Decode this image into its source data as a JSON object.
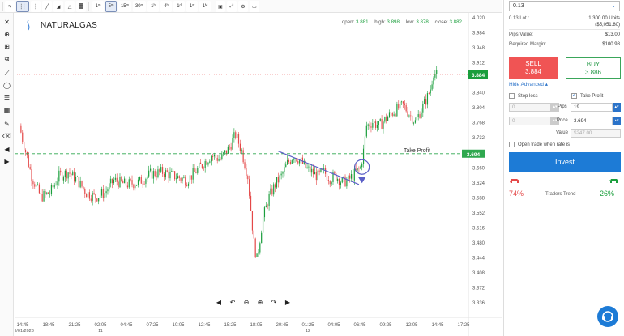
{
  "toolbar": {
    "buttons": [
      {
        "name": "cursor-tool-button",
        "label": "↖",
        "active": false
      },
      {
        "name": "candles-chart-button",
        "label": "┆┆",
        "active": true
      },
      {
        "name": "bars-chart-button",
        "label": "┇",
        "active": false
      },
      {
        "name": "line-chart-button",
        "label": "╱",
        "active": false
      },
      {
        "name": "area-chart-button",
        "label": "◢",
        "active": false
      },
      {
        "name": "mountain-chart-button",
        "label": "△",
        "active": false
      },
      {
        "name": "heikin-chart-button",
        "label": "▓",
        "active": false
      },
      {
        "name": "timeframe-1m-button",
        "label": "1ᵐ",
        "active": false
      },
      {
        "name": "timeframe-5m-button",
        "label": "5ᵐ",
        "active": true
      },
      {
        "name": "timeframe-15m-button",
        "label": "15ᵐ",
        "active": false
      },
      {
        "name": "timeframe-30m-button",
        "label": "30ᵐ",
        "active": false
      },
      {
        "name": "timeframe-1h-button",
        "label": "1ʰ",
        "active": false
      },
      {
        "name": "timeframe-4h-button",
        "label": "4ʰ",
        "active": false
      },
      {
        "name": "timeframe-1d-button",
        "label": "1ᵈ",
        "active": false
      },
      {
        "name": "timeframe-1w-button",
        "label": "1ʷ",
        "active": false
      },
      {
        "name": "timeframe-1mo-button",
        "label": "1ᴹ",
        "active": false
      }
    ]
  },
  "chart": {
    "symbol": "NATURALGAS",
    "ohlc": {
      "open_label": "open:",
      "open": "3.881",
      "high_label": "high:",
      "high": "3.898",
      "low_label": "low:",
      "low": "3.878",
      "close_label": "close:",
      "close": "3.882"
    },
    "take_profit_label": "Take Profit",
    "take_profit_price": "3.694",
    "current_price_tag": "3.884",
    "colors": {
      "up": "#1a9e3c",
      "down": "#e44848",
      "tp": "#2fa84f",
      "trendline": "#5b5fc7"
    },
    "nav_icons": [
      "arrow-left-icon",
      "zoom-out-icon",
      "zoom-in-icon",
      "zoom-reset-icon",
      "scroll-left-icon",
      "arrow-right-icon"
    ]
  },
  "chart_data": {
    "type": "candlestick",
    "symbol": "NATURALGAS",
    "y_ticks": [
      "4.020",
      "3.984",
      "3.948",
      "3.912",
      "3.876",
      "3.840",
      "3.804",
      "3.768",
      "3.732",
      "3.696",
      "3.660",
      "3.624",
      "3.588",
      "3.552",
      "3.516",
      "3.480",
      "3.444",
      "3.408",
      "3.372",
      "3.336"
    ],
    "x_ticks": [
      {
        "time": "14:45",
        "date": "10/01/2023"
      },
      {
        "time": "18:45",
        "date": ""
      },
      {
        "time": "21:25",
        "date": ""
      },
      {
        "time": "02:05",
        "date": "11"
      },
      {
        "time": "04:45",
        "date": ""
      },
      {
        "time": "07:25",
        "date": ""
      },
      {
        "time": "10:05",
        "date": ""
      },
      {
        "time": "12:45",
        "date": ""
      },
      {
        "time": "15:25",
        "date": ""
      },
      {
        "time": "18:05",
        "date": ""
      },
      {
        "time": "20:45",
        "date": ""
      },
      {
        "time": "01:25",
        "date": "12"
      },
      {
        "time": "04:05",
        "date": ""
      },
      {
        "time": "06:45",
        "date": ""
      },
      {
        "time": "09:25",
        "date": ""
      },
      {
        "time": "12:05",
        "date": ""
      },
      {
        "time": "14:45",
        "date": ""
      },
      {
        "time": "17:25",
        "date": ""
      }
    ],
    "close_path": [
      [
        0,
        3.76
      ],
      [
        4,
        3.7
      ],
      [
        8,
        3.64
      ],
      [
        14,
        3.59
      ],
      [
        20,
        3.6
      ],
      [
        26,
        3.64
      ],
      [
        32,
        3.65
      ],
      [
        38,
        3.63
      ],
      [
        44,
        3.6
      ],
      [
        50,
        3.59
      ],
      [
        56,
        3.6
      ],
      [
        62,
        3.63
      ],
      [
        70,
        3.62
      ],
      [
        78,
        3.625
      ],
      [
        86,
        3.645
      ],
      [
        94,
        3.65
      ],
      [
        102,
        3.64
      ],
      [
        110,
        3.63
      ],
      [
        118,
        3.66
      ],
      [
        126,
        3.69
      ],
      [
        132,
        3.68
      ],
      [
        138,
        3.71
      ],
      [
        142,
        3.74
      ],
      [
        146,
        3.7
      ],
      [
        150,
        3.64
      ],
      [
        152,
        3.56
      ],
      [
        154,
        3.48
      ],
      [
        156,
        3.44
      ],
      [
        158,
        3.49
      ],
      [
        160,
        3.54
      ],
      [
        164,
        3.59
      ],
      [
        168,
        3.62
      ],
      [
        172,
        3.64
      ],
      [
        176,
        3.67
      ],
      [
        180,
        3.69
      ],
      [
        184,
        3.68
      ],
      [
        188,
        3.66
      ],
      [
        192,
        3.65
      ],
      [
        196,
        3.64
      ],
      [
        200,
        3.65
      ],
      [
        204,
        3.635
      ],
      [
        208,
        3.64
      ],
      [
        212,
        3.625
      ],
      [
        216,
        3.63
      ],
      [
        220,
        3.645
      ],
      [
        224,
        3.66
      ],
      [
        226,
        3.7
      ],
      [
        228,
        3.76
      ],
      [
        232,
        3.77
      ],
      [
        236,
        3.76
      ],
      [
        240,
        3.775
      ],
      [
        244,
        3.79
      ],
      [
        248,
        3.8
      ],
      [
        252,
        3.81
      ],
      [
        256,
        3.79
      ],
      [
        260,
        3.77
      ],
      [
        264,
        3.8
      ],
      [
        268,
        3.83
      ],
      [
        270,
        3.85
      ],
      [
        272,
        3.89
      ],
      [
        274,
        3.882
      ]
    ],
    "take_profit": 3.694,
    "current_price": 3.884,
    "trendline": {
      "from": [
        170,
        3.7
      ],
      "to": [
        223,
        3.62
      ]
    }
  },
  "panel": {
    "amount_select": "0.13",
    "lot_label": "0.13 Lot :",
    "units": "1,300.00 Units",
    "units_sub": "($5,051.80)",
    "pips_value_label": "Pips Value:",
    "pips_value": "$13.00",
    "margin_label": "Required Margin:",
    "margin": "$100.98",
    "sell_label": "SELL",
    "sell_price": "3.884",
    "buy_label": "BUY",
    "buy_price": "3.886",
    "hide_advanced": "Hide Advanced ▴",
    "stop_loss_label": "Stop loss",
    "take_profit_label": "Take Profit",
    "sl_pips": "0",
    "sl_price": "0",
    "pips_label": "Pips",
    "price_label": "Price",
    "value_label": "Value",
    "tp_pips": "19",
    "tp_price": "3.694",
    "tp_value": "$247.00",
    "open_when_label": "Open trade when rate is",
    "invest_label": "Invest",
    "bear_pct": "74%",
    "trend_label": "Traders Trend",
    "bull_pct": "26%"
  }
}
